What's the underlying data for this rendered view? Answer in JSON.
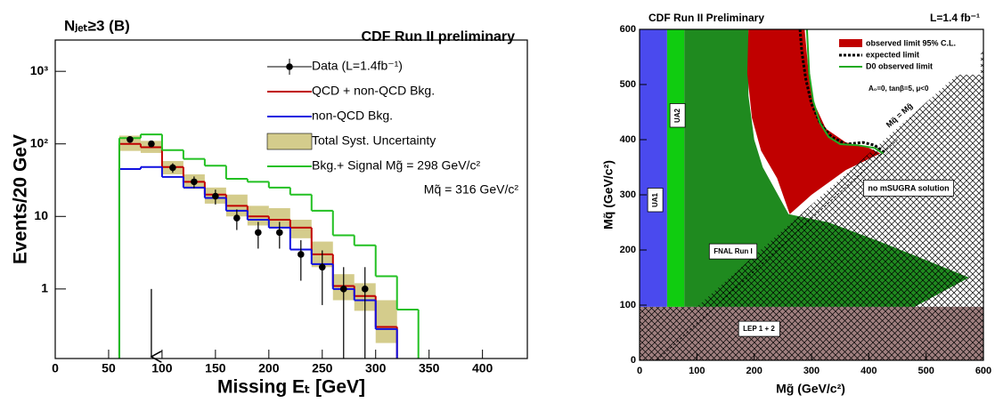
{
  "chart_data": [
    {
      "type": "histogram",
      "title": "CDF Run II preliminary",
      "subtitle": "Nⱼₑₜ≥3 (B)",
      "xlabel": "Missing Eₜ [GeV]",
      "ylabel": "Events/20 GeV",
      "xlim": [
        0,
        442
      ],
      "xticks": [
        0,
        50,
        100,
        150,
        200,
        250,
        300,
        350,
        400
      ],
      "ylim": [
        0.11,
        2700
      ],
      "log_y": true,
      "yticks": [
        1,
        10,
        {
          "value": 100,
          "label": "10²"
        },
        {
          "value": 1000,
          "label": "10³"
        }
      ],
      "bins": [
        60,
        80,
        100,
        120,
        140,
        160,
        180,
        200,
        220,
        240,
        260,
        280,
        300,
        320,
        340
      ],
      "band": {
        "name": "Total Syst. Uncertainty",
        "color": "#d4cc8c",
        "lo": [
          80,
          75,
          38,
          24,
          15,
          10,
          7.5,
          7,
          5,
          2,
          0.7,
          0.5,
          0.18,
          null
        ],
        "hi": [
          130,
          110,
          58,
          38,
          25,
          20,
          14,
          13,
          9,
          4.5,
          1.6,
          1.2,
          0.7,
          null
        ]
      },
      "series": [
        {
          "name": "QCD + non-QCD Bkg.",
          "color": "#c00000",
          "values": [
            100,
            90,
            48,
            30,
            20,
            14,
            10,
            9,
            7,
            3,
            1.1,
            0.8,
            0.3,
            null
          ]
        },
        {
          "name": "non-QCD Bkg.",
          "color": "#1010e0",
          "values": [
            45,
            48,
            35,
            25,
            18,
            12,
            9,
            7,
            3.5,
            2.2,
            1.0,
            0.7,
            0.28,
            null
          ]
        },
        {
          "name": "Bkg.+ Signal Mg̃ = 298 GeV/c²",
          "color": "#22c022",
          "values": [
            120,
            135,
            82,
            62,
            50,
            33,
            30,
            25,
            20,
            12,
            5.5,
            4,
            1.5,
            0.52
          ]
        }
      ],
      "signal_note": "Mq̃ = 316 GeV/c²",
      "points": {
        "name": "Data (L=1.4fb⁻¹)",
        "color": "#000000",
        "x": [
          70,
          90,
          110,
          130,
          150,
          170,
          190,
          210,
          230,
          250,
          270,
          290
        ],
        "values": [
          115,
          100,
          47,
          30,
          19,
          9.5,
          6,
          6,
          3,
          2,
          1,
          1
        ],
        "errors": [
          11,
          10,
          7,
          5.5,
          4.4,
          3,
          2.4,
          2.4,
          1.7,
          1.4,
          1,
          1
        ]
      },
      "arrow_x": 90
    },
    {
      "type": "contour",
      "title": "CDF Run II Preliminary",
      "subtitle": "L=1.4 fb⁻¹",
      "xlabel": "Mg̃ (GeV/c²)",
      "ylabel": "Mq̃ (GeV/c²)",
      "annotation": "A₀=0, tanβ=5, μ<0",
      "xlim": [
        0,
        600
      ],
      "xticks": [
        0,
        100,
        200,
        300,
        400,
        500,
        600
      ],
      "ylim": [
        0,
        600
      ],
      "yticks": [
        0,
        100,
        200,
        300,
        400,
        500,
        600
      ],
      "regions": [
        {
          "name": "LEP 1 + 2",
          "color": "#a08080",
          "hatch": true,
          "x": [
            0,
            600,
            600,
            0
          ],
          "y": [
            0,
            0,
            97,
            97
          ]
        },
        {
          "name": "UA1",
          "color": "#4a4aee",
          "hatch": false,
          "x": [
            0,
            48,
            48,
            0
          ],
          "y": [
            97,
            97,
            600,
            600
          ]
        },
        {
          "name": "UA2",
          "color": "#10cc10",
          "hatch": false,
          "x": [
            48,
            78,
            78,
            48
          ],
          "y": [
            600,
            600,
            97,
            97
          ]
        },
        {
          "name": "FNAL Run I",
          "color": "#1f8a1f",
          "hatch": false,
          "x": [
            78,
            190,
            190,
            200,
            215,
            260,
            330,
            420,
            575,
            480,
            78
          ],
          "y": [
            600,
            600,
            480,
            400,
            350,
            265,
            250,
            215,
            150,
            97,
            97
          ]
        },
        {
          "name": "observed limit 95% C.L.",
          "color": "#c00000",
          "hatch": false,
          "x": [
            190,
            288,
            295,
            305,
            325,
            360,
            400,
            420,
            360,
            300,
            262,
            240,
            212,
            196,
            188
          ],
          "y": [
            600,
            600,
            520,
            465,
            420,
            395,
            385,
            375,
            345,
            300,
            265,
            330,
            380,
            440,
            520
          ]
        },
        {
          "name": "no mSUGRA solution",
          "color": "none",
          "hatch": true,
          "x": [
            100,
            600,
            600
          ],
          "y": [
            97,
            560,
            97
          ]
        }
      ],
      "lines": [
        {
          "name": "expected limit",
          "color": "#000000",
          "dashed": true,
          "x": [
            280,
            283,
            290,
            300,
            315,
            335,
            360,
            390,
            410,
            430
          ],
          "y": [
            600,
            560,
            510,
            465,
            430,
            405,
            392,
            395,
            390,
            375
          ]
        },
        {
          "name": "D0 observed limit",
          "color": "#22aa22",
          "dashed": false,
          "x": [
            292,
            296,
            303,
            315,
            330,
            350,
            380,
            410,
            425
          ],
          "y": [
            600,
            520,
            470,
            430,
            405,
            392,
            390,
            385,
            375
          ]
        }
      ],
      "diagonal": {
        "label": "Mq̃ = Mg̃",
        "x": [
          30,
          450
        ],
        "y": [
          0,
          400
        ]
      }
    }
  ]
}
